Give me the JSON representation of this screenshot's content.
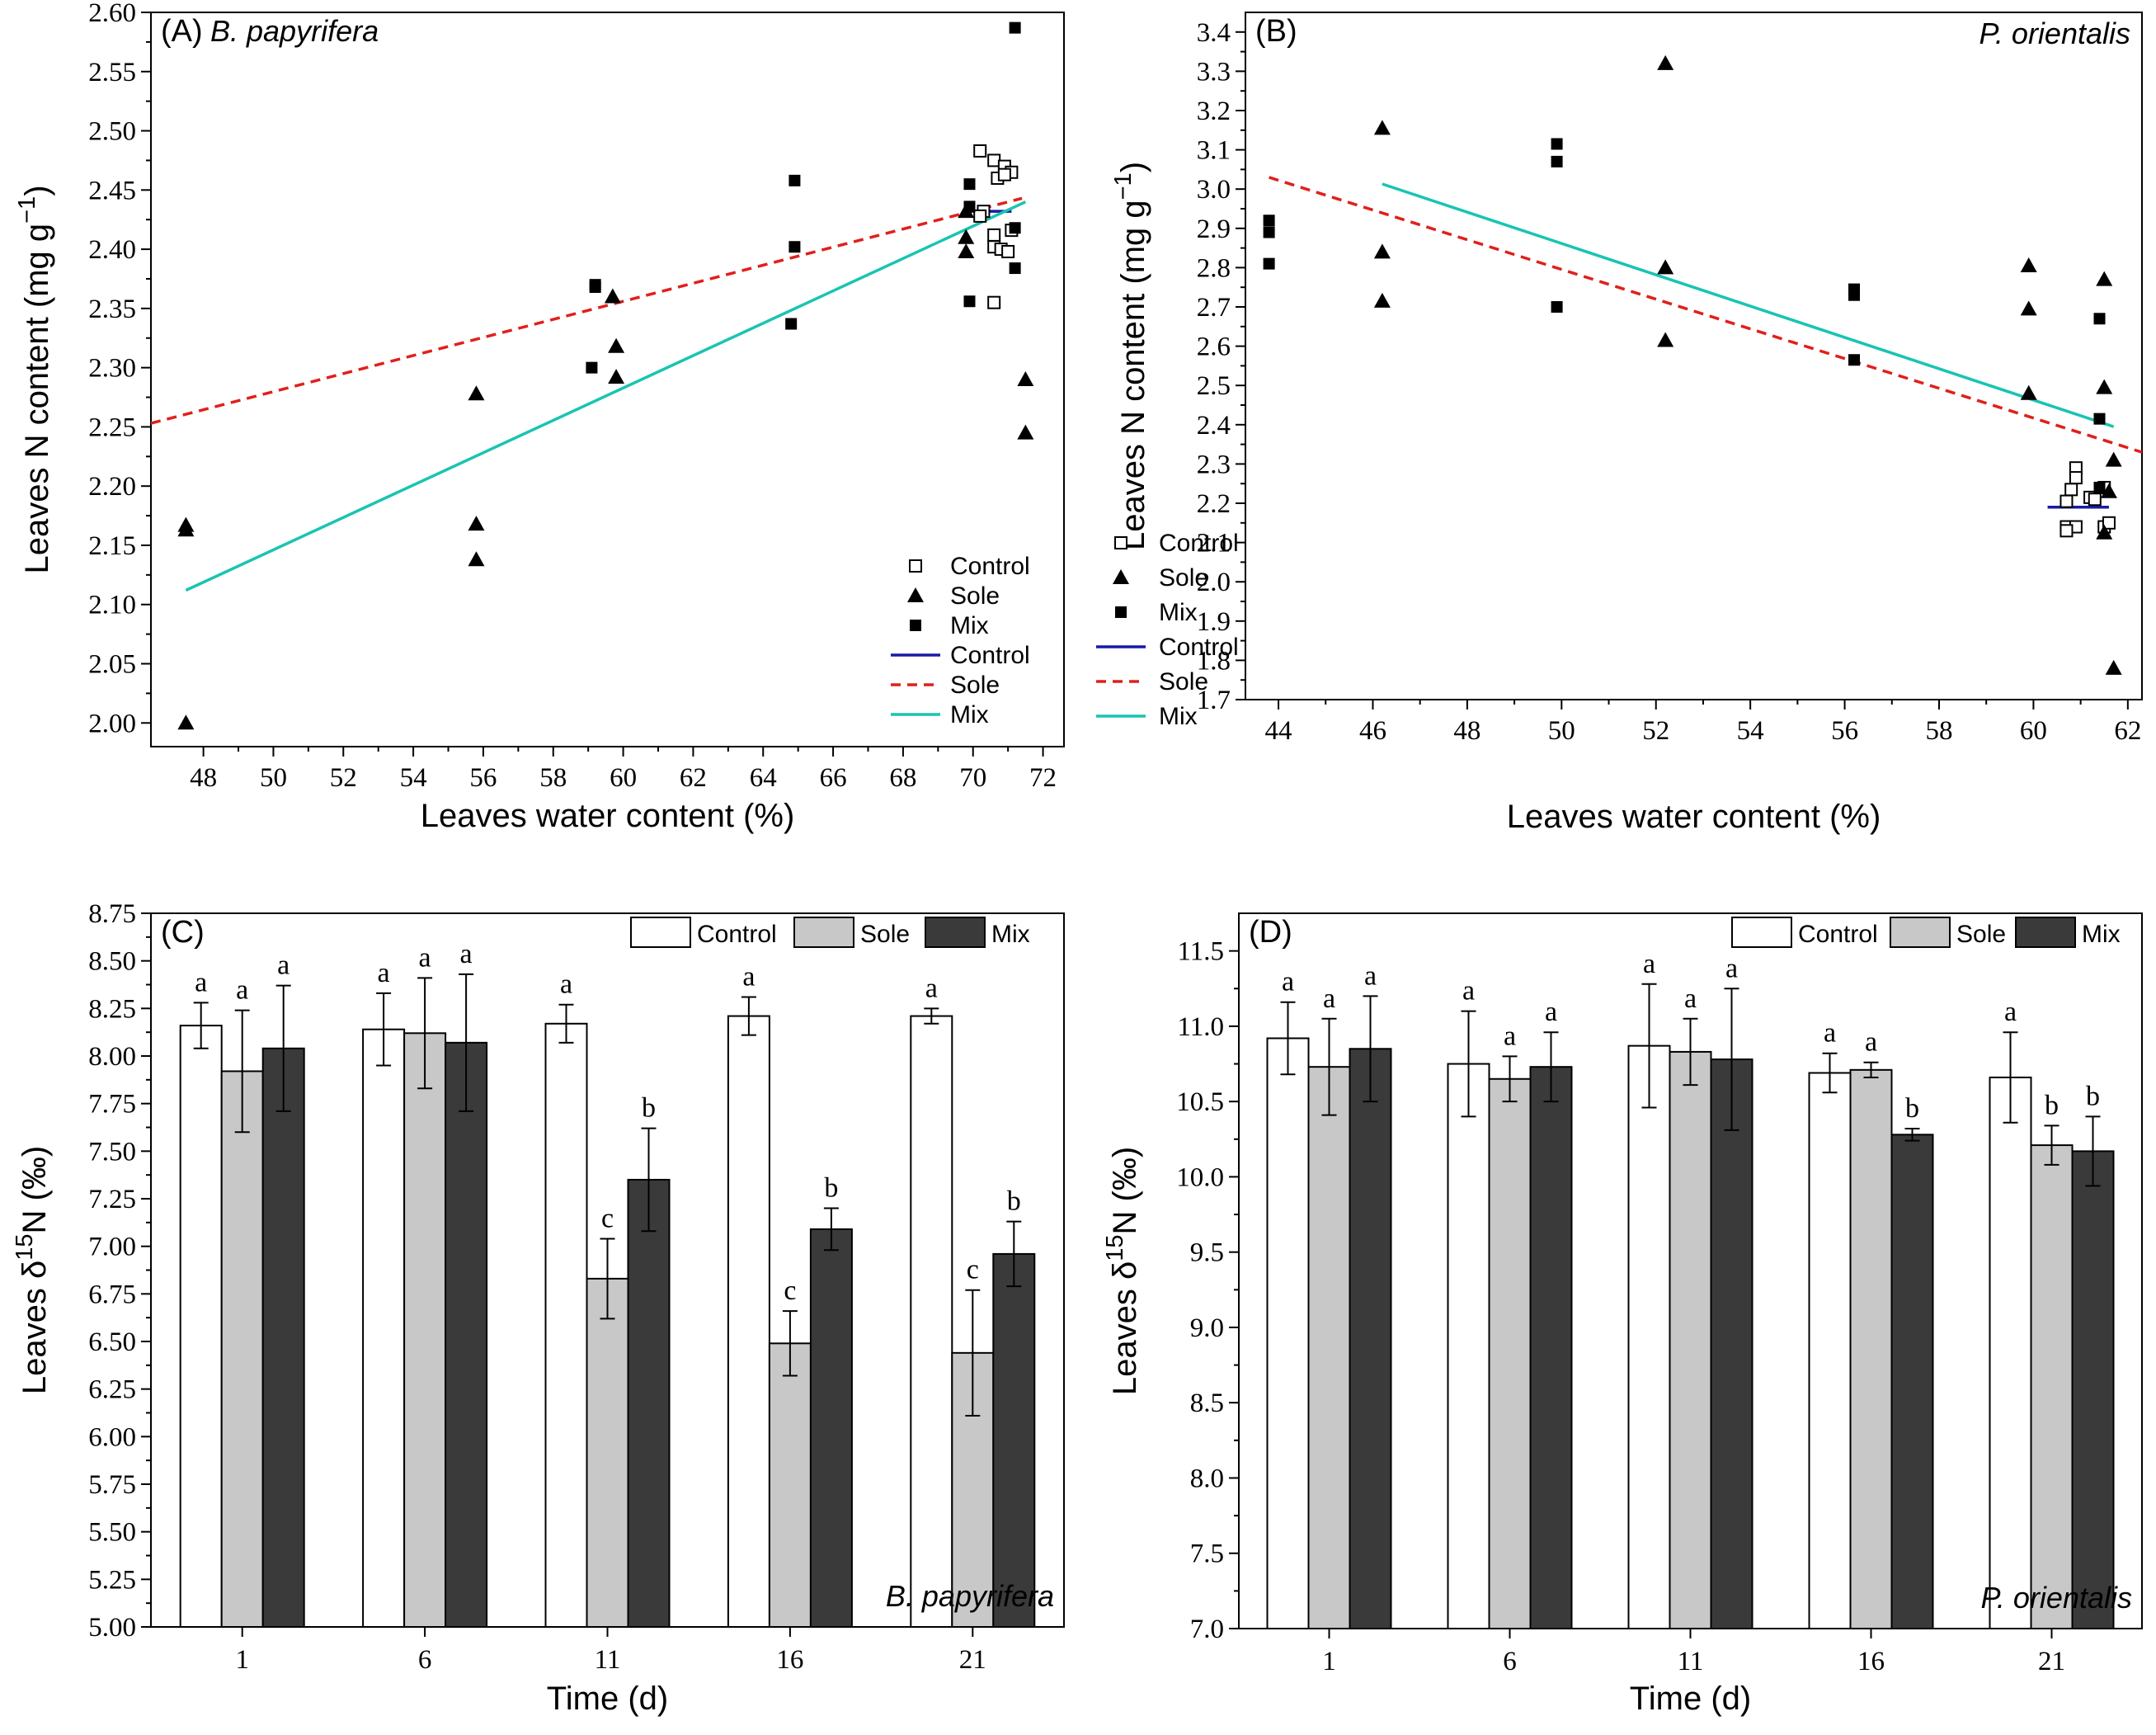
{
  "colors": {
    "control_line": "#1a1aa6",
    "sole_line": "#e0201b",
    "mix_line": "#19c4b2",
    "bar_control": "#ffffff",
    "bar_sole": "#c8c8c8",
    "bar_mix": "#3a3a3a"
  },
  "legend": {
    "control": "Control",
    "sole": "Sole",
    "mix": "Mix"
  },
  "chart_data": [
    {
      "id": "A",
      "type": "scatter",
      "panel_label": "(A)",
      "species": "B. papyrifera",
      "xlabel": "Leaves water content (%)",
      "ylabel_main": "Leaves N content (mg g",
      "ylabel_sup": "−1",
      "ylabel_close": ")",
      "xlim": [
        46.5,
        72.6
      ],
      "ylim": [
        1.98,
        2.6
      ],
      "xticks": [
        48,
        50,
        52,
        54,
        56,
        58,
        60,
        62,
        64,
        66,
        68,
        70,
        72
      ],
      "xtick_labels": [
        "48",
        "50",
        "52",
        "54",
        "56",
        "58",
        "60",
        "62",
        "64",
        "66",
        "68",
        "70",
        "72"
      ],
      "yticks": [
        2.0,
        2.05,
        2.1,
        2.15,
        2.2,
        2.25,
        2.3,
        2.35,
        2.4,
        2.45,
        2.5,
        2.55,
        2.6
      ],
      "ytick_labels": [
        "2.00",
        "2.05",
        "2.10",
        "2.15",
        "2.20",
        "2.25",
        "2.30",
        "2.35",
        "2.40",
        "2.45",
        "2.50",
        "2.55",
        "2.60"
      ],
      "series": [
        {
          "name": "Control",
          "marker": "open-square",
          "points": [
            [
              70.2,
              2.483
            ],
            [
              70.6,
              2.475
            ],
            [
              70.9,
              2.47
            ],
            [
              71.1,
              2.465
            ],
            [
              70.7,
              2.46
            ],
            [
              70.9,
              2.463
            ],
            [
              70.3,
              2.432
            ],
            [
              70.2,
              2.428
            ],
            [
              70.6,
              2.412
            ],
            [
              70.6,
              2.402
            ],
            [
              70.8,
              2.4
            ],
            [
              71.0,
              2.398
            ],
            [
              71.1,
              2.416
            ],
            [
              70.6,
              2.355
            ]
          ]
        },
        {
          "name": "Sole",
          "marker": "filled-triangle",
          "points": [
            [
              47.5,
              2.167
            ],
            [
              47.5,
              2.163
            ],
            [
              47.5,
              2.0
            ],
            [
              55.8,
              2.278
            ],
            [
              55.8,
              2.168
            ],
            [
              55.8,
              2.138
            ],
            [
              59.7,
              2.36
            ],
            [
              59.8,
              2.318
            ],
            [
              59.8,
              2.292
            ],
            [
              69.8,
              2.432
            ],
            [
              69.8,
              2.41
            ],
            [
              69.8,
              2.398
            ],
            [
              71.5,
              2.29
            ],
            [
              71.5,
              2.245
            ]
          ]
        },
        {
          "name": "Mix",
          "marker": "filled-square",
          "points": [
            [
              59.2,
              2.37
            ],
            [
              59.2,
              2.368
            ],
            [
              59.1,
              2.3
            ],
            [
              64.9,
              2.458
            ],
            [
              64.9,
              2.402
            ],
            [
              64.8,
              2.337
            ],
            [
              69.9,
              2.455
            ],
            [
              69.9,
              2.436
            ],
            [
              69.9,
              2.356
            ],
            [
              71.2,
              2.587
            ],
            [
              71.2,
              2.418
            ],
            [
              71.2,
              2.384
            ]
          ]
        }
      ],
      "fits": [
        {
          "name": "Control",
          "style": "solid",
          "x": [
            69.8,
            71.1
          ],
          "y": [
            2.432,
            2.432
          ]
        },
        {
          "name": "Sole",
          "style": "dashed",
          "x": [
            46.5,
            71.4
          ],
          "y": [
            2.253,
            2.443
          ]
        },
        {
          "name": "Mix",
          "style": "solid",
          "x": [
            47.5,
            71.5
          ],
          "y": [
            2.112,
            2.44
          ]
        }
      ]
    },
    {
      "id": "B",
      "type": "scatter",
      "panel_label": "(B)",
      "species": "P. orientalis",
      "xlabel": "Leaves water content (%)",
      "ylabel_main": "Leaves N content (mg g",
      "ylabel_sup": "−1",
      "ylabel_close": ")",
      "xlim": [
        43.3,
        62.3
      ],
      "ylim": [
        1.7,
        3.45
      ],
      "xticks": [
        44,
        46,
        48,
        50,
        52,
        54,
        56,
        58,
        60,
        62
      ],
      "xtick_labels": [
        "44",
        "46",
        "48",
        "50",
        "52",
        "54",
        "56",
        "58",
        "60",
        "62"
      ],
      "yticks": [
        1.7,
        1.8,
        1.9,
        2.0,
        2.1,
        2.2,
        2.3,
        2.4,
        2.5,
        2.6,
        2.7,
        2.8,
        2.9,
        3.0,
        3.1,
        3.2,
        3.3,
        3.4
      ],
      "ytick_labels": [
        "1.7",
        "1.8",
        "1.9",
        "2.0",
        "2.1",
        "2.2",
        "2.3",
        "2.4",
        "2.5",
        "2.6",
        "2.7",
        "2.8",
        "2.9",
        "3.0",
        "3.1",
        "3.2",
        "3.3",
        "3.4"
      ],
      "series": [
        {
          "name": "Control",
          "marker": "open-square",
          "points": [
            [
              60.9,
              2.29
            ],
            [
              60.9,
              2.265
            ],
            [
              60.8,
              2.235
            ],
            [
              60.7,
              2.205
            ],
            [
              61.2,
              2.215
            ],
            [
              61.3,
              2.21
            ],
            [
              60.7,
              2.14
            ],
            [
              60.9,
              2.14
            ],
            [
              61.5,
              2.24
            ],
            [
              61.5,
              2.14
            ],
            [
              61.6,
              2.15
            ],
            [
              60.7,
              2.13
            ]
          ]
        },
        {
          "name": "Sole",
          "marker": "filled-triangle",
          "points": [
            [
              46.2,
              3.155
            ],
            [
              46.2,
              2.84
            ],
            [
              46.2,
              2.715
            ],
            [
              52.2,
              3.32
            ],
            [
              52.2,
              2.8
            ],
            [
              52.2,
              2.615
            ],
            [
              59.9,
              2.805
            ],
            [
              59.9,
              2.695
            ],
            [
              59.9,
              2.48
            ],
            [
              61.5,
              2.77
            ],
            [
              61.5,
              2.495
            ],
            [
              61.7,
              2.31
            ],
            [
              61.6,
              2.23
            ],
            [
              61.5,
              2.125
            ],
            [
              61.7,
              1.78
            ]
          ]
        },
        {
          "name": "Mix",
          "marker": "filled-square",
          "points": [
            [
              43.8,
              2.92
            ],
            [
              43.8,
              2.89
            ],
            [
              43.8,
              2.81
            ],
            [
              49.9,
              3.115
            ],
            [
              49.9,
              3.07
            ],
            [
              49.9,
              2.7
            ],
            [
              56.2,
              2.745
            ],
            [
              56.2,
              2.73
            ],
            [
              56.2,
              2.565
            ],
            [
              61.4,
              2.67
            ],
            [
              61.4,
              2.415
            ],
            [
              61.4,
              2.24
            ]
          ]
        }
      ],
      "fits": [
        {
          "name": "Control",
          "style": "solid",
          "x": [
            60.3,
            61.6
          ],
          "y": [
            2.19,
            2.19
          ]
        },
        {
          "name": "Sole",
          "style": "dashed",
          "x": [
            43.8,
            62.3
          ],
          "y": [
            3.03,
            2.33
          ]
        },
        {
          "name": "Mix",
          "style": "solid",
          "x": [
            46.2,
            61.7
          ],
          "y": [
            3.013,
            2.395
          ]
        }
      ]
    },
    {
      "id": "C",
      "type": "bar",
      "panel_label": "(C)",
      "species": "B. papyrifera",
      "xlabel": "Time (d)",
      "ylabel_main": "Leaves δ",
      "ylabel_sup": "15",
      "ylabel_close": "N (‰)",
      "ylim": [
        5.0,
        8.75
      ],
      "yticks": [
        5.0,
        5.25,
        5.5,
        5.75,
        6.0,
        6.25,
        6.5,
        6.75,
        7.0,
        7.25,
        7.5,
        7.75,
        8.0,
        8.25,
        8.5,
        8.75
      ],
      "ytick_labels": [
        "5.00",
        "5.25",
        "5.50",
        "5.75",
        "6.00",
        "6.25",
        "6.50",
        "6.75",
        "7.00",
        "7.25",
        "7.50",
        "7.75",
        "8.00",
        "8.25",
        "8.50",
        "8.75"
      ],
      "categories": [
        "1",
        "6",
        "11",
        "16",
        "21"
      ],
      "series": [
        {
          "name": "Control",
          "values": [
            8.16,
            8.14,
            8.17,
            8.21,
            8.21
          ],
          "errors": [
            0.12,
            0.19,
            0.1,
            0.1,
            0.04
          ],
          "letters": [
            "a",
            "a",
            "a",
            "a",
            "a"
          ]
        },
        {
          "name": "Sole",
          "values": [
            7.92,
            8.12,
            6.83,
            6.49,
            6.44
          ],
          "errors": [
            0.32,
            0.29,
            0.21,
            0.17,
            0.33
          ],
          "letters": [
            "a",
            "a",
            "c",
            "c",
            "c"
          ]
        },
        {
          "name": "Mix",
          "values": [
            8.04,
            8.07,
            7.35,
            7.09,
            6.96
          ],
          "errors": [
            0.33,
            0.36,
            0.27,
            0.11,
            0.17
          ],
          "letters": [
            "a",
            "a",
            "b",
            "b",
            "b"
          ]
        }
      ]
    },
    {
      "id": "D",
      "type": "bar",
      "panel_label": "(D)",
      "species": "P. orientalis",
      "xlabel": "Time (d)",
      "ylabel_main": "Leaves δ",
      "ylabel_sup": "15",
      "ylabel_close": "N (‰)",
      "ylim": [
        7.0,
        11.75
      ],
      "yticks": [
        7.0,
        7.5,
        8.0,
        8.5,
        9.0,
        9.5,
        10.0,
        10.5,
        11.0,
        11.5
      ],
      "ytick_labels": [
        "7.0",
        "7.5",
        "8.0",
        "8.5",
        "9.0",
        "9.5",
        "10.0",
        "10.5",
        "11.0",
        "11.5"
      ],
      "categories": [
        "1",
        "6",
        "11",
        "16",
        "21"
      ],
      "series": [
        {
          "name": "Control",
          "values": [
            10.92,
            10.75,
            10.87,
            10.69,
            10.66
          ],
          "errors": [
            0.24,
            0.35,
            0.41,
            0.13,
            0.3
          ],
          "letters": [
            "a",
            "a",
            "a",
            "a",
            "a"
          ]
        },
        {
          "name": "Sole",
          "values": [
            10.73,
            10.65,
            10.83,
            10.71,
            10.21
          ],
          "errors": [
            0.32,
            0.15,
            0.22,
            0.05,
            0.13
          ],
          "letters": [
            "a",
            "a",
            "a",
            "a",
            "b"
          ]
        },
        {
          "name": "Mix",
          "values": [
            10.85,
            10.73,
            10.78,
            10.28,
            10.17
          ],
          "errors": [
            0.35,
            0.23,
            0.47,
            0.04,
            0.23
          ],
          "letters": [
            "a",
            "a",
            "a",
            "b",
            "b"
          ]
        }
      ]
    }
  ]
}
